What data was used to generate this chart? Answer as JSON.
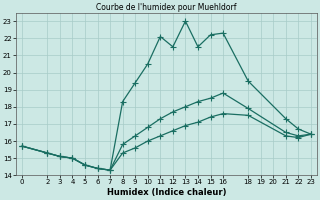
{
  "title": "Courbe de l'humidex pour Muehldorf",
  "xlabel": "Humidex (Indice chaleur)",
  "xlim": [
    -0.5,
    23.5
  ],
  "ylim": [
    14,
    23.5
  ],
  "xticks": [
    0,
    2,
    3,
    4,
    5,
    6,
    7,
    8,
    9,
    10,
    11,
    12,
    13,
    14,
    15,
    16,
    18,
    19,
    20,
    21,
    22,
    23
  ],
  "yticks": [
    14,
    15,
    16,
    17,
    18,
    19,
    20,
    21,
    22,
    23
  ],
  "bg_color": "#cce8e4",
  "grid_color": "#a8ccc8",
  "line_color": "#1a6e62",
  "line1_x": [
    0,
    2,
    3,
    4,
    5,
    6,
    7,
    8,
    9,
    10,
    11,
    12,
    13,
    14,
    15,
    16,
    18,
    21,
    22,
    23
  ],
  "line1_y": [
    15.7,
    15.3,
    15.1,
    15.0,
    14.6,
    14.4,
    14.3,
    18.3,
    19.4,
    20.5,
    22.1,
    21.5,
    23.0,
    21.5,
    22.2,
    22.3,
    19.5,
    17.3,
    16.7,
    16.4
  ],
  "line2_x": [
    0,
    2,
    3,
    4,
    5,
    6,
    7,
    8,
    9,
    10,
    11,
    12,
    13,
    14,
    15,
    16,
    18,
    21,
    22,
    23
  ],
  "line2_y": [
    15.7,
    15.3,
    15.1,
    15.0,
    14.6,
    14.4,
    14.3,
    15.8,
    16.3,
    16.8,
    17.3,
    17.7,
    18.0,
    18.3,
    18.5,
    18.8,
    17.9,
    16.5,
    16.3,
    16.4
  ],
  "line3_x": [
    0,
    2,
    3,
    4,
    5,
    6,
    7,
    8,
    9,
    10,
    11,
    12,
    13,
    14,
    15,
    16,
    18,
    21,
    22,
    23
  ],
  "line3_y": [
    15.7,
    15.3,
    15.1,
    15.0,
    14.6,
    14.4,
    14.3,
    15.3,
    15.6,
    16.0,
    16.3,
    16.6,
    16.9,
    17.1,
    17.4,
    17.6,
    17.5,
    16.3,
    16.2,
    16.4
  ]
}
